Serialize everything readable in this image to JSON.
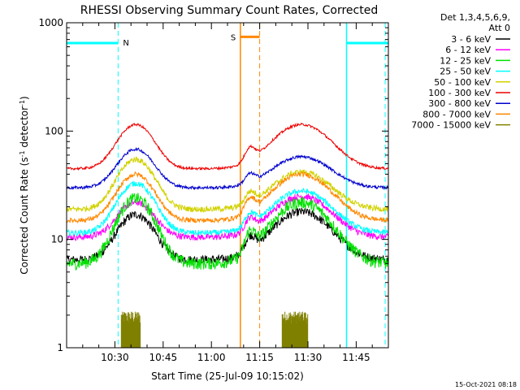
{
  "chart_data": {
    "type": "line",
    "title": "RHESSI Observing Summary Count Rates, Corrected",
    "xlabel": "Start Time (25-Jul-09 10:15:02)",
    "ylabel_main": "Corrected Count Rate (s",
    "ylabel_sup1": "-1",
    "ylabel_mid": " detector",
    "ylabel_sup2": "-1",
    "ylabel_end": ")",
    "x_range_min_after_1015": [
      0,
      100
    ],
    "y_scale": "log",
    "ylim": [
      1,
      1000
    ],
    "x_ticks": [
      {
        "label": "10:30",
        "min": 15
      },
      {
        "label": "10:45",
        "min": 30
      },
      {
        "label": "11:00",
        "min": 45
      },
      {
        "label": "11:15",
        "min": 60
      },
      {
        "label": "11:30",
        "min": 75
      },
      {
        "label": "11:45",
        "min": 90
      }
    ],
    "y_ticks": [
      {
        "label": "1",
        "value": 1
      },
      {
        "label": "10",
        "value": 10
      },
      {
        "label": "100",
        "value": 100
      },
      {
        "label": "1000",
        "value": 1000
      }
    ],
    "legend": {
      "header_line1": "Det 1,3,4,5,6,9,",
      "header_line2": "Att 0",
      "placement": "right",
      "entries": [
        {
          "label": "3 - 6 keV",
          "color": "#000000"
        },
        {
          "label": "6 - 12 keV",
          "color": "#ff00ff"
        },
        {
          "label": "12 - 25 keV",
          "color": "#00e000"
        },
        {
          "label": "25 - 50 keV",
          "color": "#00ffff"
        },
        {
          "label": "50 - 100 keV",
          "color": "#d2d200"
        },
        {
          "label": "100 - 300 keV",
          "color": "#ee0000"
        },
        {
          "label": "300 - 800 keV",
          "color": "#0000cc"
        },
        {
          "label": "800 - 7000 keV",
          "color": "#ff8800"
        },
        {
          "label": "7000 - 15000 keV",
          "color": "#808000"
        }
      ]
    },
    "series": [
      {
        "band": "3 - 6 keV",
        "color": "#000000",
        "base": 6.5,
        "peak1": 17,
        "peak2": 18,
        "noise": 0.09
      },
      {
        "band": "6 - 12 keV",
        "color": "#ff00ff",
        "base": 10.5,
        "peak1": 22,
        "peak2": 25,
        "noise": 0.07
      },
      {
        "band": "12 - 25 keV",
        "color": "#00e000",
        "base": 6,
        "peak1": 24,
        "peak2": 22,
        "noise": 0.13
      },
      {
        "band": "25 - 50 keV",
        "color": "#00ffff",
        "base": 11.5,
        "peak1": 33,
        "peak2": 28,
        "noise": 0.06
      },
      {
        "band": "50 - 100 keV",
        "color": "#d2d200",
        "base": 19,
        "peak1": 55,
        "peak2": 42,
        "noise": 0.06
      },
      {
        "band": "100 - 300 keV",
        "color": "#ee0000",
        "base": 45,
        "peak1": 115,
        "peak2": 115,
        "noise": 0.025
      },
      {
        "band": "300 - 800 keV",
        "color": "#0000cc",
        "base": 30,
        "peak1": 68,
        "peak2": 58,
        "noise": 0.03
      },
      {
        "band": "800 - 7000 keV",
        "color": "#ff8800",
        "base": 15,
        "peak1": 40,
        "peak2": 40,
        "noise": 0.05
      }
    ],
    "spikes_band": "7000 - 15000 keV",
    "spike_color": "#808000",
    "spike_windows": [
      [
        17,
        23
      ],
      [
        67,
        75
      ]
    ],
    "spike_range": [
      1,
      2.2
    ],
    "night_color": "#00ffff",
    "night_line_value": 650,
    "night_intervals": [
      [
        0,
        16
      ],
      [
        87,
        100
      ]
    ],
    "night_end_dashed": [
      16,
      99
    ],
    "night_start_solid": [
      87
    ],
    "saa_color": "#ff8800",
    "saa_solid_x": 54,
    "saa_dashed_x": 60,
    "saa_bar": [
      54,
      60
    ],
    "saa_bar_value": 740,
    "night_label": "N",
    "saa_label": "S",
    "footer_stamp": "15-Oct-2021 08:18"
  }
}
